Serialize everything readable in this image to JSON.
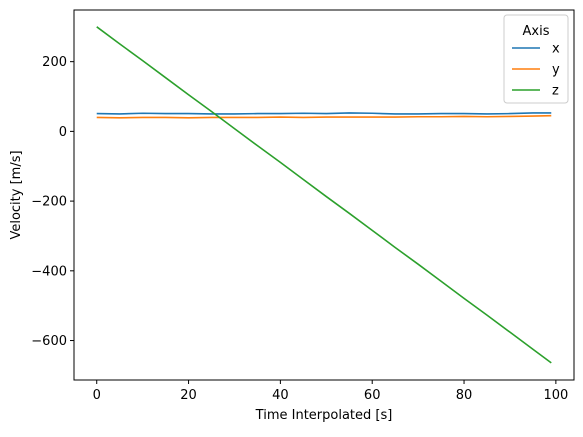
{
  "chart_data": {
    "type": "line",
    "title": "",
    "xlabel": "Time Interpolated [s]",
    "ylabel": "Velocity [m/s]",
    "xlim": [
      -4.95,
      103.95
    ],
    "ylim": [
      -713.2,
      348.2
    ],
    "x_ticks": [
      0,
      20,
      40,
      60,
      80,
      100
    ],
    "x_tick_labels": [
      "0",
      "20",
      "40",
      "60",
      "80",
      "100"
    ],
    "y_ticks": [
      -600,
      -400,
      -200,
      0,
      200
    ],
    "y_tick_labels": [
      "−600",
      "−400",
      "−200",
      "0",
      "200"
    ],
    "grid": false,
    "legend": {
      "title": "Axis",
      "placement": "top-right"
    },
    "x": [
      0,
      5,
      10,
      15,
      20,
      25,
      30,
      35,
      40,
      45,
      50,
      55,
      60,
      65,
      70,
      75,
      80,
      85,
      90,
      95,
      99
    ],
    "series": [
      {
        "name": "x",
        "color": "#1f77b4",
        "values": [
          51,
          50,
          52,
          51,
          51,
          50,
          50,
          51,
          51,
          52,
          51,
          53,
          52,
          50,
          50,
          51,
          51,
          50,
          51,
          53,
          53
        ]
      },
      {
        "name": "y",
        "color": "#ff7f0e",
        "values": [
          40,
          39,
          40,
          40,
          39,
          40,
          40,
          40,
          41,
          40,
          41,
          41,
          41,
          41,
          42,
          42,
          43,
          42,
          43,
          44,
          45
        ]
      },
      {
        "name": "z",
        "color": "#2ca02c",
        "values": [
          300,
          251,
          203,
          154,
          105,
          57,
          8,
          -41,
          -89,
          -138,
          -187,
          -235,
          -284,
          -333,
          -381,
          -430,
          -479,
          -527,
          -576,
          -625,
          -664
        ]
      }
    ]
  }
}
